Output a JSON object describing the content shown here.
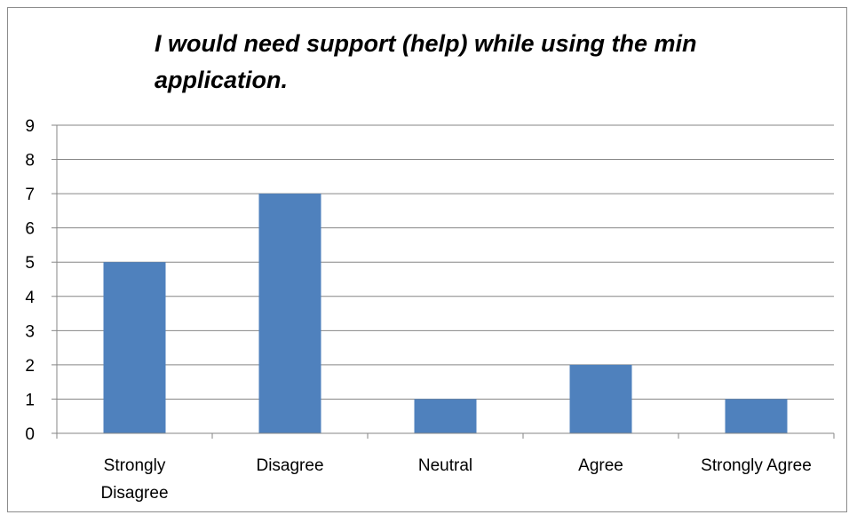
{
  "chart_data": {
    "type": "bar",
    "title_lines": [
      "I would need support (help) while using the min",
      "application."
    ],
    "categories": [
      [
        "Strongly",
        "Disagree"
      ],
      [
        "Disagree"
      ],
      [
        "Neutral"
      ],
      [
        "Agree"
      ],
      [
        "Strongly Agree"
      ]
    ],
    "values": [
      5,
      7,
      1,
      2,
      1
    ],
    "ylim": [
      0,
      9
    ],
    "yticks": [
      "0",
      "1",
      "2",
      "3",
      "4",
      "5",
      "6",
      "7",
      "8",
      "9"
    ],
    "grid": true,
    "legend": "none",
    "bar_color": "#4f81bd",
    "gridline_color": "#868686"
  }
}
